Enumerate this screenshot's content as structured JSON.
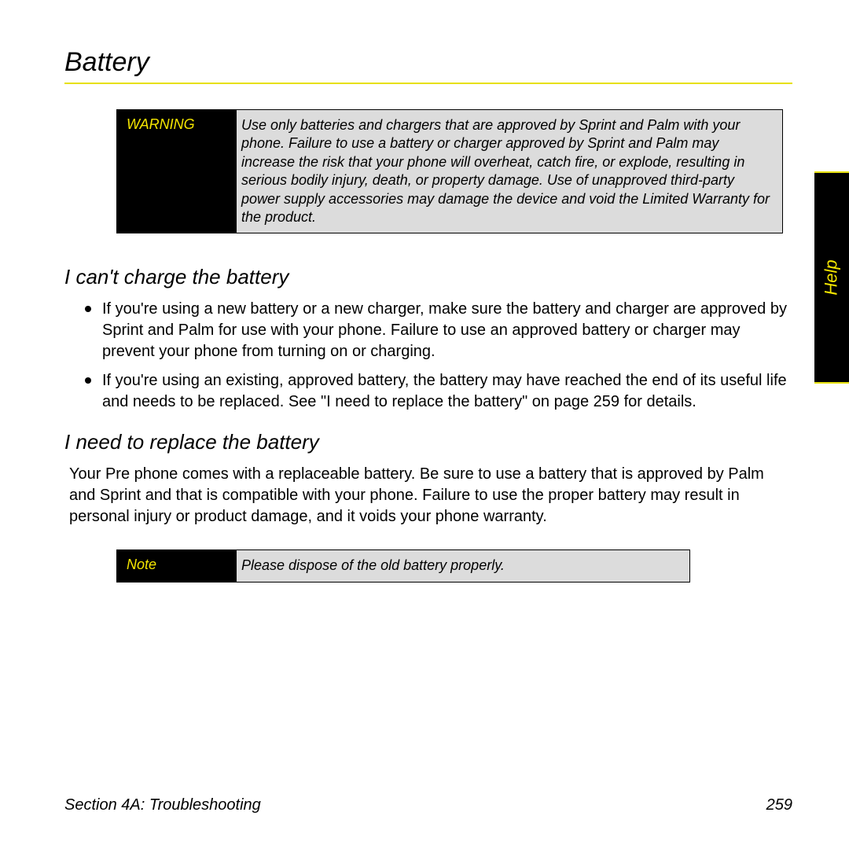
{
  "page": {
    "title": "Battery",
    "side_tab": "Help",
    "footer_section": "Section 4A: Troubleshooting",
    "footer_page": "259"
  },
  "warning": {
    "label": "WARNING",
    "text": "Use only batteries and chargers that are approved by Sprint and Palm with your phone. Failure to use a battery or charger approved by Sprint and Palm may increase the risk that your phone will overheat, catch fire, or explode, resulting in serious bodily injury, death, or property damage. Use of unapproved third-party power supply accessories may damage the device and void the Limited Warranty for the product."
  },
  "sections": {
    "s1": {
      "heading": "I can't charge the battery",
      "bullets": [
        "If you're using a new battery or a new charger, make sure the battery and charger are approved by Sprint and Palm for use with your phone. Failure to use an approved battery or charger may prevent your phone from turning on or charging.",
        "If you're using an existing, approved battery, the battery may have reached the end of its useful life and needs to be replaced. See \"I need to replace the battery\" on page 259 for details."
      ]
    },
    "s2": {
      "heading": "I need to replace the battery",
      "para": "Your Pre phone comes with a replaceable battery. Be sure to use a battery that is approved by Palm and Sprint and that is compatible with your phone. Failure to use the proper battery may result in personal injury or product damage, and it voids your phone warranty."
    }
  },
  "note": {
    "label": "Note",
    "text": "Please dispose of the old battery properly."
  },
  "colors": {
    "accent": "#e6e000",
    "callout_label_bg": "#000000",
    "callout_label_fg": "#f5e600",
    "callout_body_bg": "#dcdcdc",
    "page_bg": "#ffffff",
    "text": "#000000"
  },
  "typography": {
    "h1_size_pt": 26,
    "h2_size_pt": 20,
    "body_size_pt": 15,
    "callout_size_pt": 14,
    "italic_headings": true
  }
}
